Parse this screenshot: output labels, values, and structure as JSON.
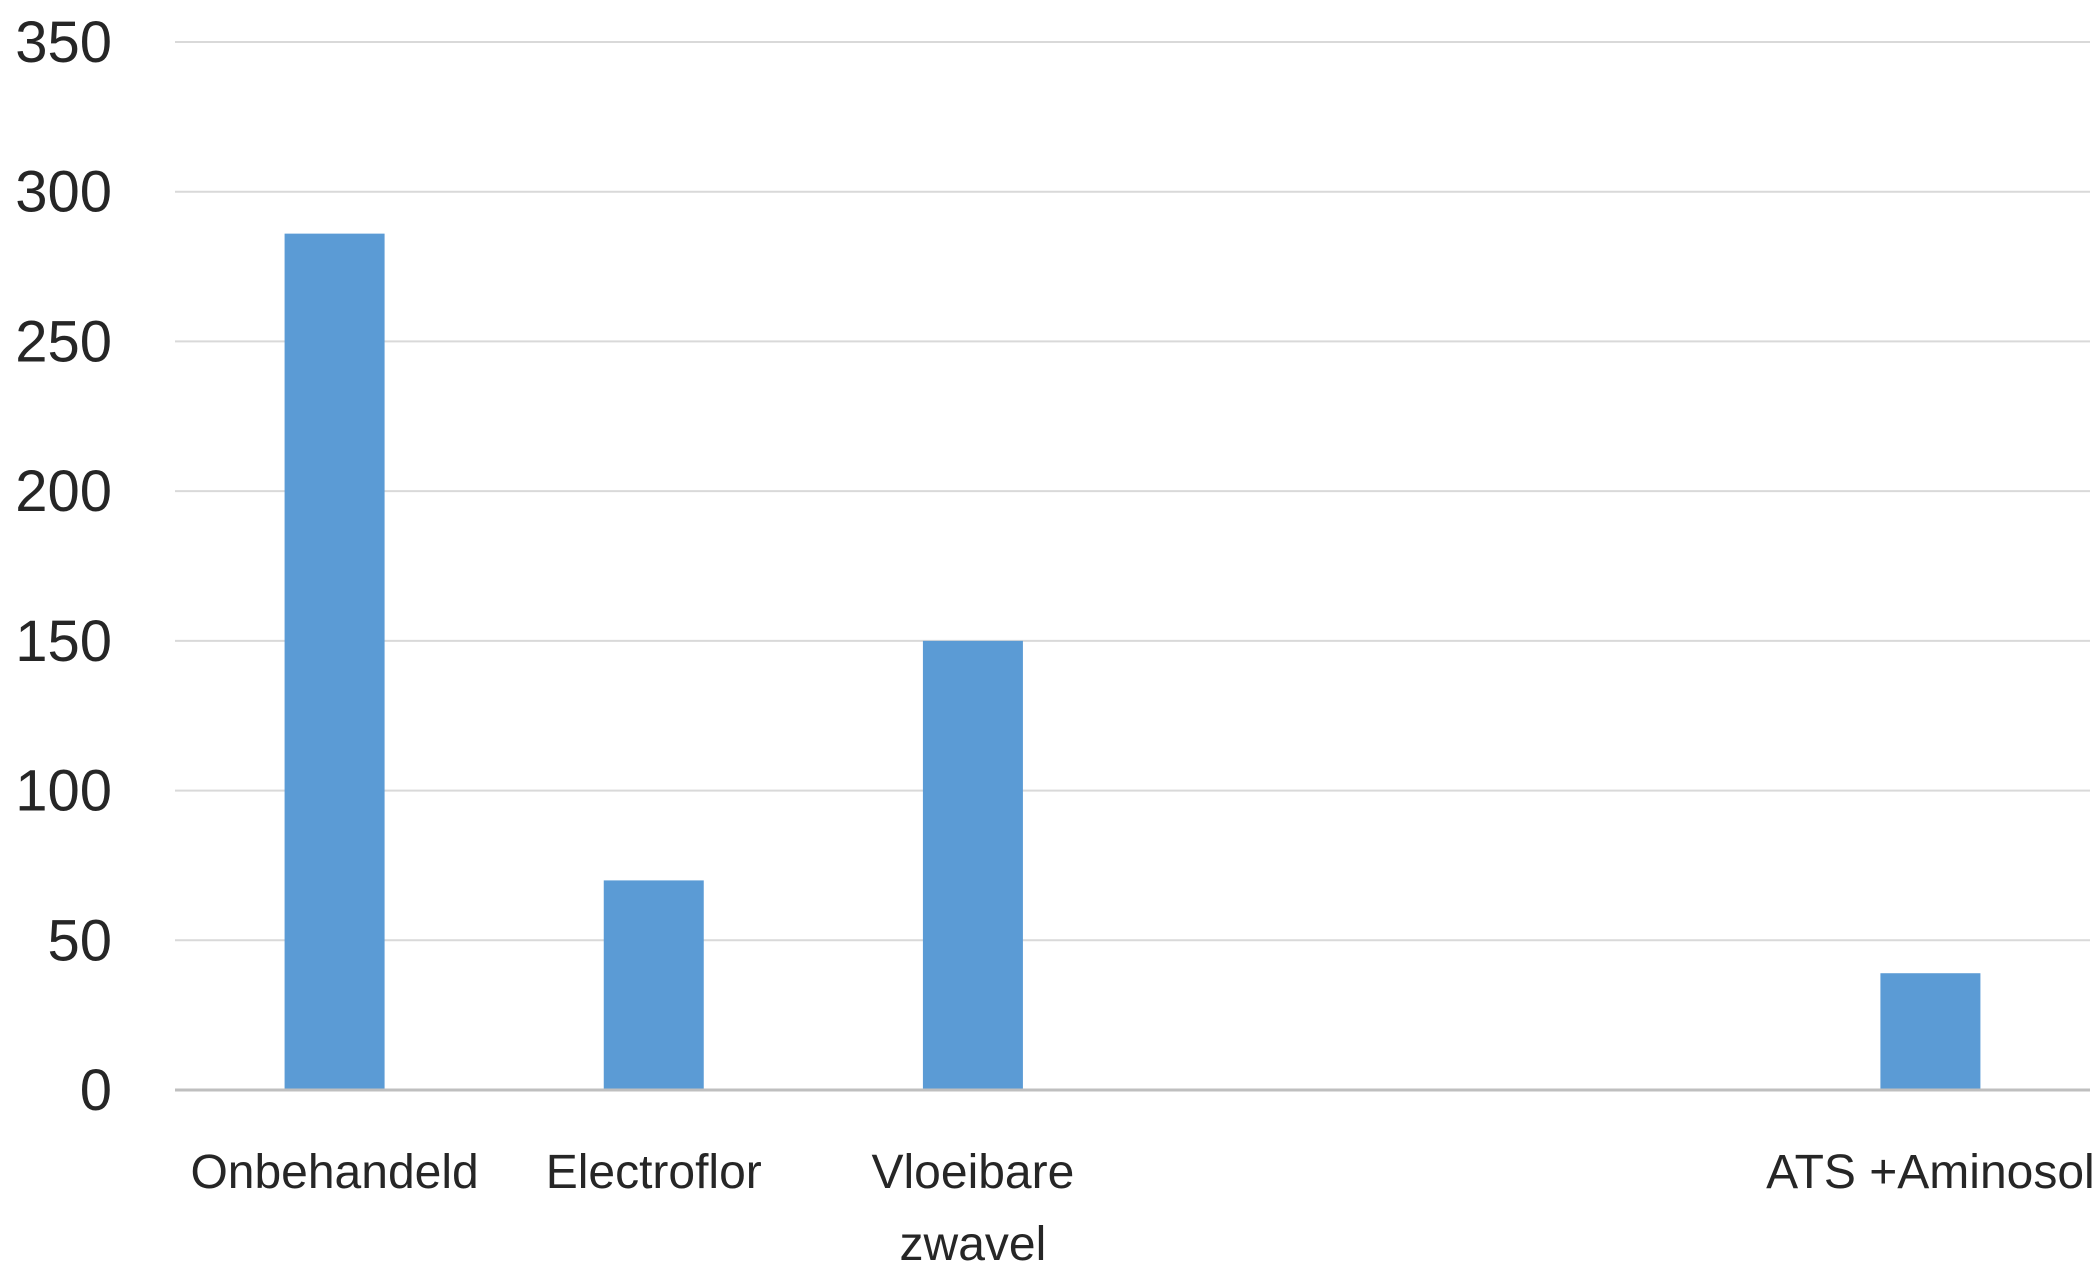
{
  "chart_data": {
    "type": "bar",
    "categories": [
      [
        "Onbehandeld"
      ],
      [
        "Electroflor"
      ],
      [
        "Vloeibare",
        "zwavel"
      ],
      [
        ""
      ],
      [
        ""
      ],
      [
        "ATS +Aminosol"
      ]
    ],
    "values": [
      286,
      70,
      150,
      null,
      null,
      39
    ],
    "ylim": [
      0,
      350
    ],
    "yticks": [
      0,
      50,
      100,
      150,
      200,
      250,
      300,
      350
    ],
    "grid": true,
    "legend": "none",
    "colors": {
      "bar": "#5B9BD5",
      "grid": "#D9D9D9",
      "axis": "#BFBFBF",
      "text": "#262626"
    }
  }
}
